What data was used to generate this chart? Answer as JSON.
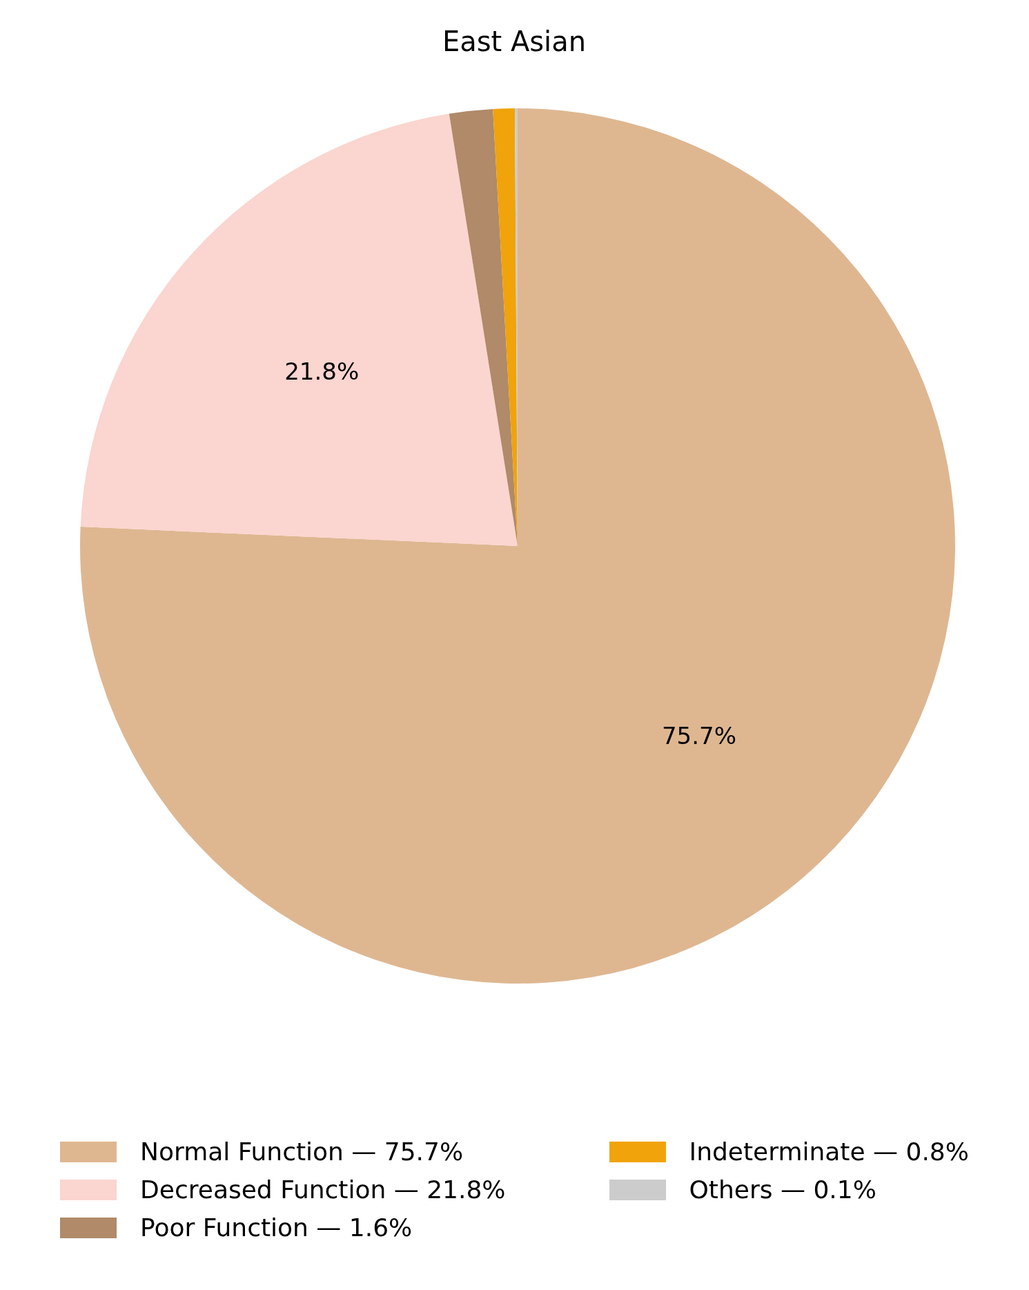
{
  "chart_data": {
    "type": "pie",
    "title": "East Asian",
    "categories": [
      "Normal Function — 75.7%",
      "Decreased Function — 21.8%",
      "Poor Function — 1.6%",
      "Indeterminate — 0.8%",
      "Others — 0.1%"
    ],
    "values": [
      75.7,
      21.8,
      1.6,
      0.8,
      0.1
    ],
    "colors": [
      "#deb791",
      "#fbd5cf",
      "#b08a69",
      "#f0a30a",
      "#cccccc"
    ],
    "value_labels": [
      "75.7%",
      "21.8%",
      null,
      null,
      null
    ],
    "legend": "bottom"
  }
}
